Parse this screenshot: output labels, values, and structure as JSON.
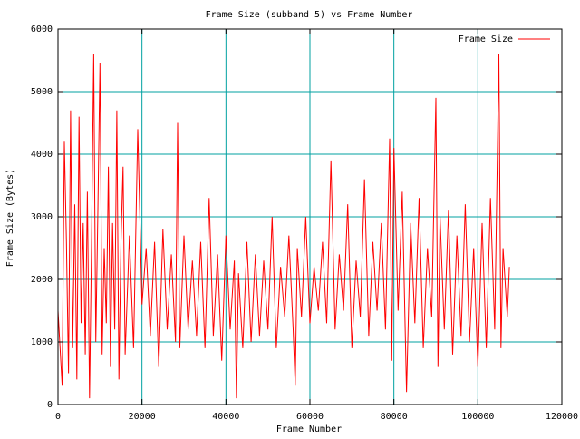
{
  "chart_data": {
    "type": "line",
    "title": "Frame Size (subband 5) vs Frame Number",
    "xlabel": "Frame Number",
    "ylabel": "Frame Size (Bytes)",
    "xlim": [
      0,
      120000
    ],
    "ylim": [
      0,
      6000
    ],
    "xticks": [
      0,
      20000,
      40000,
      60000,
      80000,
      100000,
      120000
    ],
    "yticks": [
      0,
      1000,
      2000,
      3000,
      4000,
      5000,
      6000
    ],
    "grid": true,
    "legend_position": "top-right",
    "colors": {
      "series": "#ff0000",
      "grid": "#00a0a0",
      "axes": "#000000"
    },
    "series": [
      {
        "name": "Frame Size",
        "x": [
          0,
          1000,
          1500,
          2000,
          2500,
          3000,
          3500,
          4000,
          4500,
          5000,
          5500,
          6000,
          6500,
          7000,
          7500,
          8000,
          8500,
          9000,
          9500,
          10000,
          10500,
          11000,
          11500,
          12000,
          12500,
          13000,
          13500,
          14000,
          14500,
          15000,
          15500,
          16000,
          17000,
          18000,
          19000,
          20000,
          21000,
          22000,
          23000,
          24000,
          25000,
          26000,
          27000,
          28000,
          28500,
          29000,
          30000,
          31000,
          32000,
          33000,
          34000,
          35000,
          36000,
          37000,
          38000,
          39000,
          40000,
          41000,
          42000,
          42500,
          43000,
          44000,
          45000,
          46000,
          47000,
          48000,
          49000,
          50000,
          51000,
          52000,
          53000,
          54000,
          55000,
          56000,
          56500,
          57000,
          58000,
          59000,
          60000,
          61000,
          62000,
          63000,
          64000,
          65000,
          66000,
          67000,
          68000,
          69000,
          70000,
          71000,
          72000,
          73000,
          74000,
          75000,
          76000,
          77000,
          78000,
          79000,
          79500,
          80000,
          81000,
          82000,
          83000,
          84000,
          85000,
          86000,
          87000,
          88000,
          89000,
          90000,
          90500,
          91000,
          92000,
          93000,
          94000,
          95000,
          96000,
          97000,
          98000,
          99000,
          100000,
          101000,
          102000,
          103000,
          104000,
          105000,
          105500,
          106000,
          107000,
          107500
        ],
        "values": [
          1500,
          300,
          4200,
          2600,
          500,
          4700,
          900,
          3200,
          400,
          4600,
          1300,
          2900,
          800,
          3400,
          100,
          2700,
          5600,
          1000,
          3100,
          5450,
          800,
          2500,
          1300,
          3800,
          600,
          2900,
          1200,
          4700,
          400,
          2600,
          3800,
          800,
          2700,
          900,
          4400,
          1600,
          2500,
          1100,
          2600,
          600,
          2800,
          1200,
          2400,
          1000,
          4500,
          900,
          2700,
          1200,
          2300,
          1100,
          2600,
          900,
          3300,
          1100,
          2400,
          700,
          2700,
          1200,
          2300,
          100,
          2100,
          900,
          2600,
          1000,
          2400,
          1100,
          2300,
          1200,
          3000,
          900,
          2200,
          1400,
          2700,
          1200,
          300,
          2500,
          1400,
          3000,
          1300,
          2200,
          1500,
          2600,
          1300,
          3900,
          1200,
          2400,
          1500,
          3200,
          900,
          2300,
          1400,
          3600,
          1100,
          2600,
          1500,
          2900,
          1200,
          4250,
          700,
          4100,
          1500,
          3400,
          200,
          2900,
          1300,
          3300,
          900,
          2500,
          1400,
          4900,
          600,
          3000,
          1200,
          3100,
          800,
          2700,
          1100,
          3200,
          1000,
          2500,
          600,
          2900,
          900,
          3300,
          1200,
          5600,
          900,
          2500,
          1400,
          2200
        ]
      }
    ]
  }
}
